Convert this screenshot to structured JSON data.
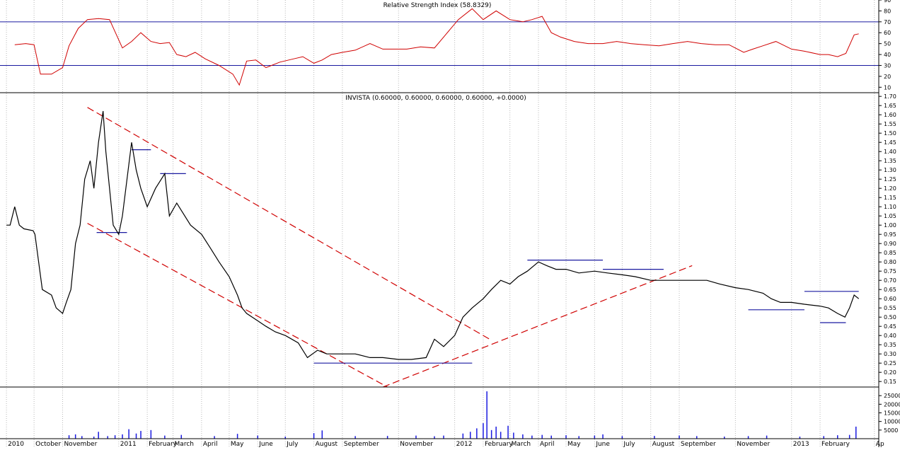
{
  "chart_data": [
    {
      "type": "line",
      "panel": "rsi",
      "title": "Relative Strength Index (58.8329)",
      "color": "#d00000",
      "ylim": [
        5,
        90
      ],
      "y_ticks": [
        "10",
        "20",
        "30",
        "40",
        "50",
        "60",
        "70",
        "80",
        "90"
      ],
      "reference_lines": [
        30,
        70
      ],
      "reference_color": "#1a1aa0",
      "series": [
        {
          "x": [
            "2010-09-10",
            "2010-09-22",
            "2010-10-01",
            "2010-10-08",
            "2010-10-20",
            "2010-11-01",
            "2010-11-08",
            "2010-11-18",
            "2010-11-28",
            "2010-12-10",
            "2010-12-22",
            "2011-01-05",
            "2011-01-15",
            "2011-01-25",
            "2011-02-05",
            "2011-02-15",
            "2011-02-25",
            "2011-03-05",
            "2011-03-15",
            "2011-03-25",
            "2011-04-05",
            "2011-04-20",
            "2011-05-05",
            "2011-05-12",
            "2011-05-20",
            "2011-05-30",
            "2011-06-10",
            "2011-06-25",
            "2011-07-10",
            "2011-07-20",
            "2011-08-01",
            "2011-08-10",
            "2011-08-20",
            "2011-09-01",
            "2011-09-15",
            "2011-10-01",
            "2011-10-15",
            "2011-11-01",
            "2011-11-10",
            "2011-11-25",
            "2011-12-10",
            "2011-12-22",
            "2012-01-05",
            "2012-01-20",
            "2012-02-01",
            "2012-02-15",
            "2012-03-01",
            "2012-03-15",
            "2012-03-25",
            "2012-04-05",
            "2012-04-15",
            "2012-04-25",
            "2012-05-10",
            "2012-05-25",
            "2012-06-10",
            "2012-06-25",
            "2012-07-10",
            "2012-07-25",
            "2012-08-10",
            "2012-08-25",
            "2012-09-10",
            "2012-09-25",
            "2012-10-10",
            "2012-10-25",
            "2012-11-10",
            "2012-11-20",
            "2012-12-01",
            "2012-12-15",
            "2013-01-01",
            "2013-01-15",
            "2013-02-01",
            "2013-02-10",
            "2013-02-20",
            "2013-03-01",
            "2013-03-10",
            "2013-03-15"
          ],
          "values": [
            49,
            50,
            49,
            22,
            22,
            28,
            48,
            64,
            72,
            73,
            72,
            46,
            52,
            60,
            52,
            50,
            51,
            40,
            38,
            42,
            36,
            30,
            22,
            12,
            34,
            35,
            28,
            33,
            36,
            38,
            32,
            35,
            40,
            42,
            44,
            50,
            45,
            45,
            45,
            47,
            46,
            58,
            72,
            82,
            72,
            80,
            72,
            70,
            72,
            75,
            60,
            56,
            52,
            50,
            50,
            52,
            50,
            49,
            48,
            50,
            52,
            50,
            49,
            49,
            42,
            45,
            48,
            52,
            45,
            43,
            40,
            40,
            38,
            41,
            58,
            59
          ]
        }
      ]
    },
    {
      "type": "line",
      "panel": "price",
      "title": "INVISTA (0.60000, 0.60000, 0.60000, 0.60000, +0.0000)",
      "color": "#000000",
      "ylim": [
        0.12,
        1.72
      ],
      "y_ticks": [
        "0.15",
        "0.20",
        "0.25",
        "0.30",
        "0.35",
        "0.40",
        "0.45",
        "0.50",
        "0.55",
        "0.60",
        "0.65",
        "0.70",
        "0.75",
        "0.80",
        "0.85",
        "0.90",
        "0.95",
        "1.00",
        "1.05",
        "1.10",
        "1.15",
        "1.20",
        "1.25",
        "1.30",
        "1.35",
        "1.40",
        "1.45",
        "1.50",
        "1.55",
        "1.60",
        "1.65",
        "1.70"
      ],
      "x_labels": [
        "2010",
        "October",
        "November",
        "2011",
        "February",
        "March",
        "April",
        "May",
        "June",
        "July",
        "August",
        "September",
        "November",
        "2012",
        "February",
        "March",
        "April",
        "May",
        "June",
        "July",
        "August",
        "September",
        "November",
        "2013",
        "February",
        "Ap"
      ],
      "x_label_dates": [
        "2010-09-01",
        "2010-10-01",
        "2010-11-01",
        "2011-01-01",
        "2011-02-01",
        "2011-03-01",
        "2011-04-01",
        "2011-05-01",
        "2011-06-01",
        "2011-07-01",
        "2011-08-01",
        "2011-09-01",
        "2011-11-01",
        "2012-01-01",
        "2012-02-01",
        "2012-03-01",
        "2012-04-01",
        "2012-05-01",
        "2012-06-01",
        "2012-07-01",
        "2012-08-01",
        "2012-09-01",
        "2012-11-01",
        "2013-01-01",
        "2013-02-01",
        "2013-04-01"
      ],
      "x_range": [
        "2010-08-25",
        "2013-04-05"
      ],
      "series": [
        {
          "x": [
            "2010-09-01",
            "2010-09-05",
            "2010-09-10",
            "2010-09-15",
            "2010-09-20",
            "2010-09-30",
            "2010-10-02",
            "2010-10-10",
            "2010-10-20",
            "2010-10-25",
            "2010-11-01",
            "2010-11-05",
            "2010-11-10",
            "2010-11-15",
            "2010-11-20",
            "2010-11-25",
            "2010-12-01",
            "2010-12-05",
            "2010-12-10",
            "2010-12-15",
            "2010-12-18",
            "2010-12-22",
            "2010-12-26",
            "2011-01-01",
            "2011-01-05",
            "2011-01-10",
            "2011-01-15",
            "2011-01-20",
            "2011-01-25",
            "2011-02-01",
            "2011-02-10",
            "2011-02-20",
            "2011-02-25",
            "2011-03-05",
            "2011-03-10",
            "2011-03-20",
            "2011-04-01",
            "2011-04-10",
            "2011-04-20",
            "2011-05-01",
            "2011-05-10",
            "2011-05-15",
            "2011-05-20",
            "2011-06-01",
            "2011-06-10",
            "2011-06-20",
            "2011-07-01",
            "2011-07-15",
            "2011-07-25",
            "2011-08-05",
            "2011-08-15",
            "2011-09-01",
            "2011-09-15",
            "2011-10-01",
            "2011-10-15",
            "2011-11-01",
            "2011-11-15",
            "2011-12-01",
            "2011-12-10",
            "2011-12-20",
            "2012-01-01",
            "2012-01-10",
            "2012-01-20",
            "2012-02-01",
            "2012-02-10",
            "2012-02-20",
            "2012-03-01",
            "2012-03-10",
            "2012-03-20",
            "2012-04-01",
            "2012-04-10",
            "2012-04-20",
            "2012-05-01",
            "2012-05-15",
            "2012-06-01",
            "2012-06-15",
            "2012-07-01",
            "2012-07-15",
            "2012-08-01",
            "2012-08-15",
            "2012-09-01",
            "2012-09-15",
            "2012-10-01",
            "2012-10-15",
            "2012-11-01",
            "2012-11-15",
            "2012-12-01",
            "2012-12-10",
            "2012-12-20",
            "2013-01-01",
            "2013-01-15",
            "2013-02-01",
            "2013-02-10",
            "2013-02-20",
            "2013-02-28",
            "2013-03-05",
            "2013-03-10",
            "2013-03-15"
          ],
          "values": [
            1.0,
            1.0,
            1.1,
            1.0,
            0.98,
            0.97,
            0.95,
            0.65,
            0.62,
            0.55,
            0.52,
            0.58,
            0.65,
            0.9,
            1.0,
            1.25,
            1.35,
            1.2,
            1.45,
            1.62,
            1.4,
            1.2,
            1.0,
            0.95,
            1.05,
            1.25,
            1.45,
            1.3,
            1.2,
            1.1,
            1.2,
            1.28,
            1.05,
            1.12,
            1.08,
            1.0,
            0.95,
            0.88,
            0.8,
            0.72,
            0.62,
            0.55,
            0.52,
            0.48,
            0.45,
            0.42,
            0.4,
            0.36,
            0.28,
            0.32,
            0.3,
            0.3,
            0.3,
            0.28,
            0.28,
            0.27,
            0.27,
            0.28,
            0.38,
            0.34,
            0.4,
            0.5,
            0.55,
            0.6,
            0.65,
            0.7,
            0.68,
            0.72,
            0.75,
            0.8,
            0.78,
            0.76,
            0.76,
            0.74,
            0.75,
            0.74,
            0.73,
            0.72,
            0.7,
            0.7,
            0.7,
            0.7,
            0.7,
            0.68,
            0.66,
            0.65,
            0.63,
            0.6,
            0.58,
            0.58,
            0.57,
            0.56,
            0.55,
            0.52,
            0.5,
            0.55,
            0.62,
            0.6
          ]
        }
      ],
      "trendlines": [
        {
          "color": "#d00000",
          "style": "dashed",
          "x": [
            "2010-11-28",
            "2012-02-08"
          ],
          "y": [
            1.64,
            0.38
          ]
        },
        {
          "color": "#d00000",
          "style": "dashed",
          "x": [
            "2010-11-28",
            "2011-10-20"
          ],
          "y": [
            1.01,
            0.12
          ]
        },
        {
          "color": "#d00000",
          "style": "dashed",
          "x": [
            "2011-10-15",
            "2012-09-15"
          ],
          "y": [
            0.12,
            0.78
          ]
        },
        {
          "color": "#1a1aa0",
          "style": "solid",
          "x": [
            "2010-12-08",
            "2011-01-10"
          ],
          "y": [
            0.96,
            0.96
          ]
        },
        {
          "color": "#1a1aa0",
          "style": "solid",
          "x": [
            "2011-01-15",
            "2011-02-05"
          ],
          "y": [
            1.41,
            1.41
          ]
        },
        {
          "color": "#1a1aa0",
          "style": "solid",
          "x": [
            "2011-02-15",
            "2011-03-15"
          ],
          "y": [
            1.28,
            1.28
          ]
        },
        {
          "color": "#1a1aa0",
          "style": "solid",
          "x": [
            "2011-08-01",
            "2012-01-20"
          ],
          "y": [
            0.25,
            0.25
          ]
        },
        {
          "color": "#1a1aa0",
          "style": "solid",
          "x": [
            "2012-03-20",
            "2012-06-10"
          ],
          "y": [
            0.81,
            0.81
          ]
        },
        {
          "color": "#1a1aa0",
          "style": "solid",
          "x": [
            "2012-06-10",
            "2012-08-15"
          ],
          "y": [
            0.76,
            0.76
          ]
        },
        {
          "color": "#1a1aa0",
          "style": "solid",
          "x": [
            "2012-11-15",
            "2013-01-15"
          ],
          "y": [
            0.54,
            0.54
          ]
        },
        {
          "color": "#1a1aa0",
          "style": "solid",
          "x": [
            "2013-01-15",
            "2013-03-15"
          ],
          "y": [
            0.64,
            0.64
          ]
        },
        {
          "color": "#1a1aa0",
          "style": "solid",
          "x": [
            "2013-02-01",
            "2013-03-01"
          ],
          "y": [
            0.47,
            0.47
          ]
        }
      ]
    },
    {
      "type": "bar",
      "panel": "volume",
      "color": "#1a1ae0",
      "ylim": [
        0,
        30000
      ],
      "y_ticks": [
        "5000",
        "10000",
        "15000",
        "20000",
        "25000"
      ],
      "series": [
        {
          "x": [
            "2010-11-08",
            "2010-11-15",
            "2010-11-22",
            "2010-12-05",
            "2010-12-10",
            "2010-12-20",
            "2010-12-28",
            "2011-01-05",
            "2011-01-12",
            "2011-01-20",
            "2011-01-25",
            "2011-02-05",
            "2011-02-20",
            "2011-03-10",
            "2011-04-15",
            "2011-05-10",
            "2011-06-01",
            "2011-07-01",
            "2011-08-01",
            "2011-08-10",
            "2011-09-15",
            "2011-10-20",
            "2011-11-20",
            "2011-12-10",
            "2011-12-20",
            "2012-01-10",
            "2012-01-18",
            "2012-01-25",
            "2012-02-01",
            "2012-02-05",
            "2012-02-10",
            "2012-02-15",
            "2012-02-20",
            "2012-02-28",
            "2012-03-05",
            "2012-03-15",
            "2012-03-25",
            "2012-04-05",
            "2012-04-15",
            "2012-05-01",
            "2012-05-15",
            "2012-06-01",
            "2012-06-10",
            "2012-07-01",
            "2012-08-05",
            "2012-09-01",
            "2012-09-20",
            "2012-10-20",
            "2012-11-15",
            "2012-12-05",
            "2013-01-10",
            "2013-02-05",
            "2013-02-20",
            "2013-03-05",
            "2013-03-12"
          ],
          "values": [
            2000,
            2500,
            1500,
            1200,
            4000,
            1500,
            2000,
            2500,
            5500,
            3000,
            4500,
            5000,
            1800,
            2200,
            1500,
            2800,
            1800,
            1200,
            3200,
            4800,
            1500,
            1600,
            1800,
            1400,
            1800,
            3000,
            4000,
            6000,
            9000,
            27500,
            5000,
            7000,
            4000,
            7500,
            3500,
            2500,
            1800,
            2200,
            1800,
            2000,
            1500,
            1800,
            2500,
            1500,
            1600,
            1800,
            1500,
            1200,
            1500,
            1800,
            1200,
            1500,
            2000,
            2200,
            7000
          ]
        }
      ]
    }
  ]
}
